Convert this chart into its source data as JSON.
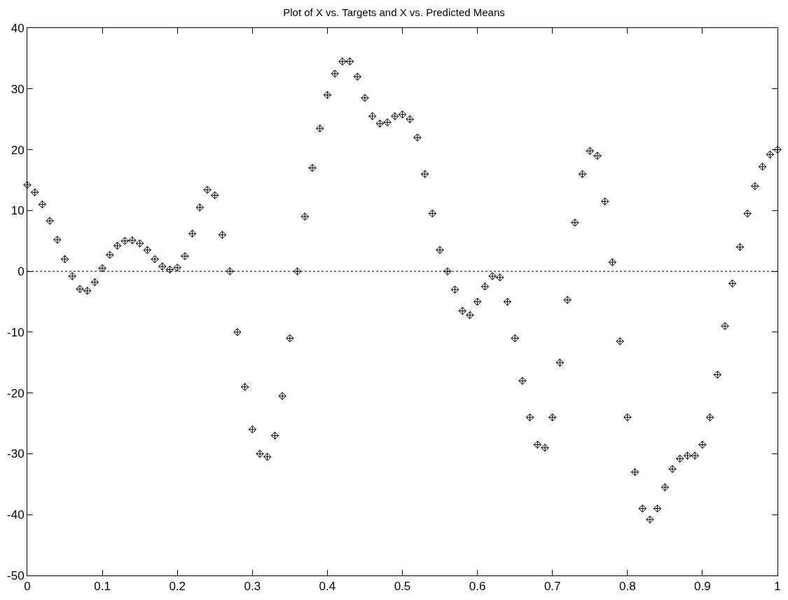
{
  "chart_data": {
    "type": "scatter",
    "title": "Plot of X vs. Targets and X vs. Predicted Means",
    "x": [
      0,
      0.01,
      0.02,
      0.03,
      0.04,
      0.05,
      0.06,
      0.07,
      0.08,
      0.09,
      0.1,
      0.11,
      0.12,
      0.13,
      0.14,
      0.15,
      0.16,
      0.17,
      0.18,
      0.19,
      0.2,
      0.21,
      0.22,
      0.23,
      0.24,
      0.25,
      0.26,
      0.27,
      0.28,
      0.29,
      0.3,
      0.31,
      0.32,
      0.33,
      0.34,
      0.35,
      0.36,
      0.37,
      0.38,
      0.39,
      0.4,
      0.41,
      0.42,
      0.43,
      0.44,
      0.45,
      0.46,
      0.47,
      0.48,
      0.49,
      0.5,
      0.51,
      0.52,
      0.53,
      0.54,
      0.55,
      0.56,
      0.57,
      0.58,
      0.59,
      0.6,
      0.61,
      0.62,
      0.63,
      0.64,
      0.65,
      0.66,
      0.67,
      0.68,
      0.69,
      0.7,
      0.71,
      0.72,
      0.73,
      0.74,
      0.75,
      0.76,
      0.77,
      0.78,
      0.79,
      0.8,
      0.81,
      0.82,
      0.83,
      0.84,
      0.85,
      0.86,
      0.87,
      0.88,
      0.89,
      0.9,
      0.91,
      0.92,
      0.93,
      0.94,
      0.95,
      0.96,
      0.97,
      0.98,
      0.99,
      1
    ],
    "series": [
      {
        "color": "#000000",
        "marker": "diamond",
        "values": [
          14.2,
          13,
          11,
          8.3,
          5.2,
          2,
          -0.8,
          -2.9,
          -3.2,
          -1.8,
          0.5,
          2.7,
          4.2,
          5,
          5.1,
          4.6,
          3.5,
          2,
          0.8,
          0.3,
          0.6,
          2.5,
          6.2,
          10.5,
          13.4,
          12.5,
          6,
          0,
          -10,
          -19,
          -26,
          -30,
          -30.5,
          -27,
          -20.5,
          -11,
          0,
          9,
          17,
          23.5,
          29,
          32.5,
          34.5,
          34.5,
          32,
          28.5,
          25.5,
          24.3,
          24.5,
          25.5,
          25.8,
          25,
          22,
          16,
          9.5,
          3.5,
          0,
          -3,
          -6.5,
          -7.2,
          -5,
          -2.5,
          -0.8,
          -1,
          -5,
          -11,
          -18,
          -24,
          -28.5,
          -29,
          -24,
          -15,
          -4.7,
          8,
          16,
          19.8,
          19,
          11.5,
          1.5,
          -11.5,
          -24,
          -33,
          -39,
          -40.8,
          -39,
          -35.5,
          -32.5,
          -30.8,
          -30.3,
          -30.3,
          -28.5,
          -24,
          -17,
          -9,
          -2,
          4,
          9.5,
          14,
          17.2,
          19.2,
          20
        ]
      }
    ],
    "xlim": [
      0,
      1
    ],
    "xticks": [
      0,
      0.1,
      0.2,
      0.3,
      0.4,
      0.5,
      0.6,
      0.7,
      0.8,
      0.9,
      1
    ],
    "ylim": [
      -50,
      40
    ],
    "yticks": [
      -50,
      -40,
      -30,
      -20,
      -10,
      0,
      10,
      20,
      30,
      40
    ],
    "ref_lines": [
      {
        "axis": "y",
        "value": 0,
        "line_style": "dotted",
        "color": "#000000"
      }
    ],
    "legend": false
  }
}
